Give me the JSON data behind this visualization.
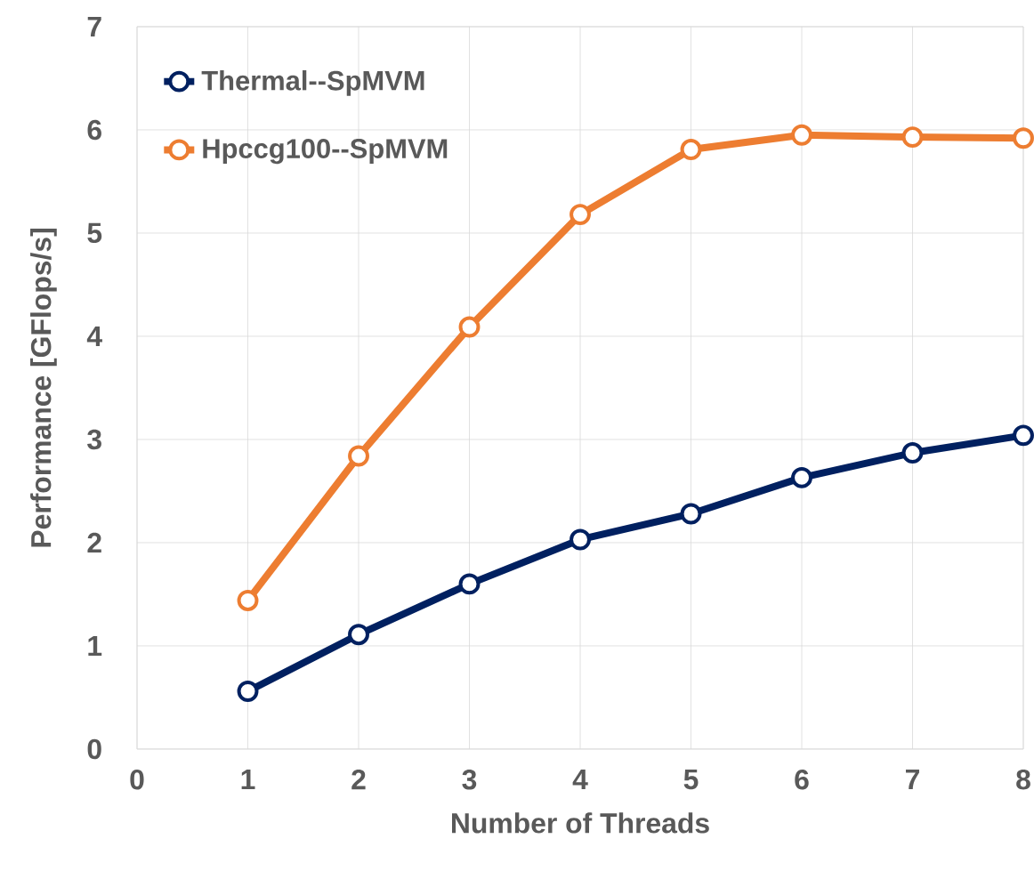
{
  "chart_data": {
    "type": "line",
    "xlabel": "Number of Threads",
    "ylabel": "Performance [GFlops/s]",
    "x": [
      1,
      2,
      3,
      4,
      5,
      6,
      7,
      8
    ],
    "series": [
      {
        "name": "Thermal--SpMVM",
        "color": "#002060",
        "values": [
          0.56,
          1.11,
          1.6,
          2.03,
          2.28,
          2.63,
          2.87,
          3.04
        ]
      },
      {
        "name": "Hpccg100--SpMVM",
        "color": "#ed7d31",
        "values": [
          1.44,
          2.84,
          4.09,
          5.18,
          5.81,
          5.95,
          5.93,
          5.92
        ]
      }
    ],
    "xlim": [
      0,
      8
    ],
    "xticks": [
      0,
      1,
      2,
      3,
      4,
      5,
      6,
      7,
      8
    ],
    "ylim": [
      0,
      7
    ],
    "yticks": [
      0,
      1,
      2,
      3,
      4,
      5,
      6,
      7
    ],
    "grid": true,
    "legend": "top left",
    "marker": "circle",
    "line_style": "solid"
  }
}
